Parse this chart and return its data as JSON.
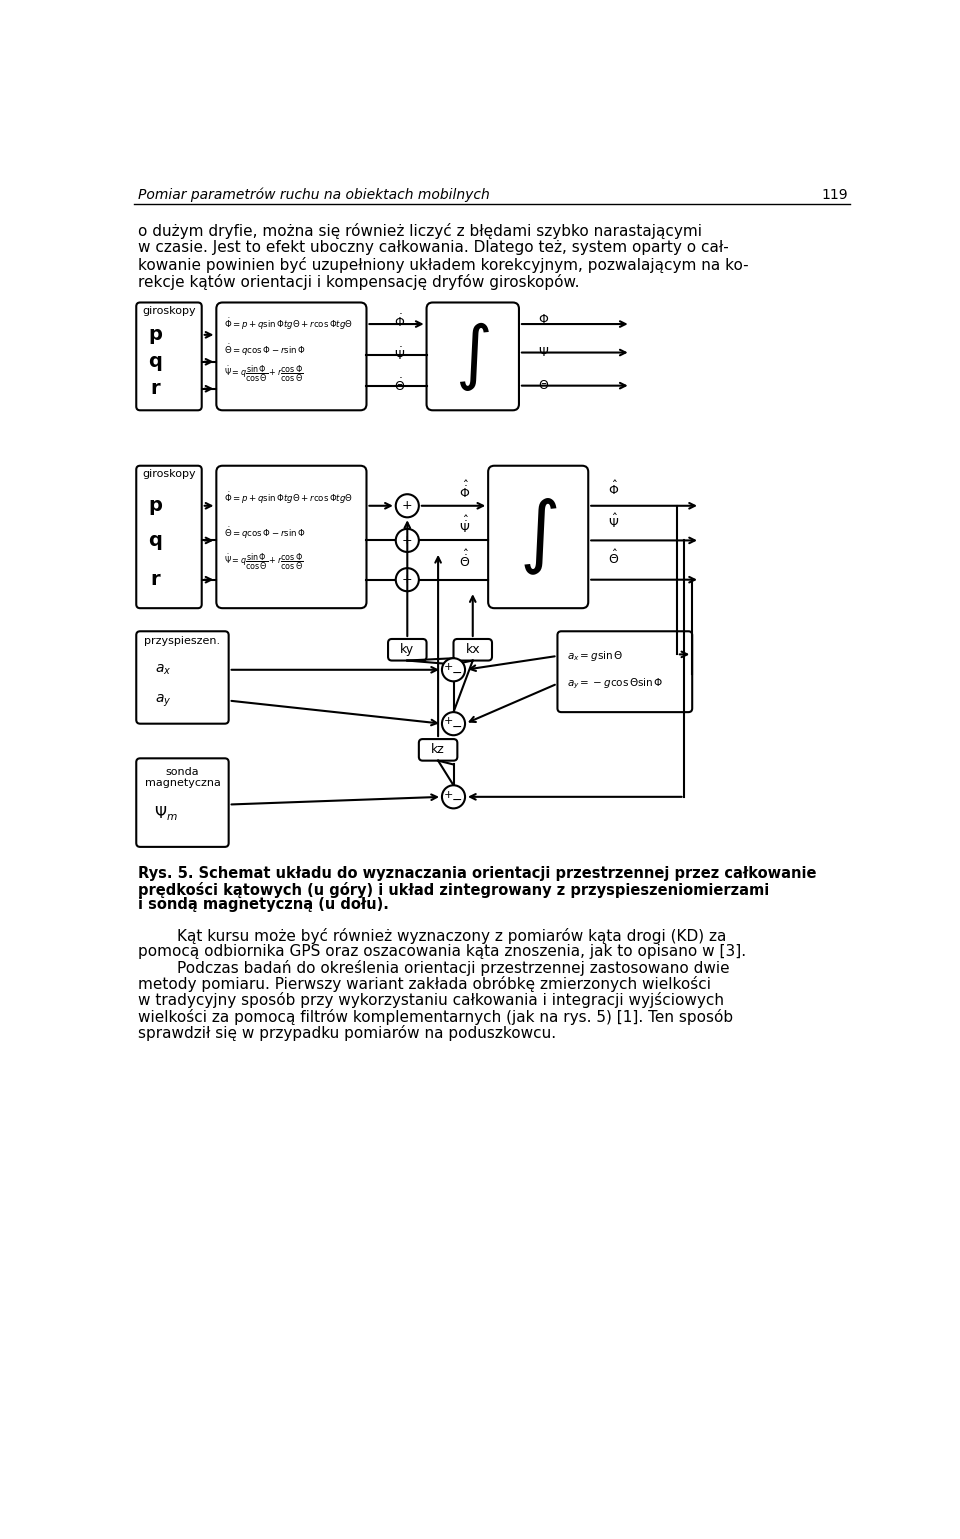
{
  "bg_color": "#ffffff",
  "lw": 1.5,
  "header_text": "Pomiar parametrów ruchu na obiektach mobilnych",
  "page_num": "119",
  "para_lines": [
    "o dużym dryfie, można się również liczyć z błędami szybko narastającymi",
    "w czasie. Jest to efekt uboczny całkowania. Dlatego też, system oparty o cał-",
    "kowanie powinien być uzupełniony układem korekcyjnym, pozwalającym na ko-",
    "rekcje kątów orientacji i kompensację dryfów giroskopów."
  ],
  "caption_lines": [
    "Rys. 5. Schemat układu do wyznaczania orientacji przestrzennej przez całkowanie",
    "prędkości kątowych (u góry) i układ zintegrowany z przyspieszeniomierzami",
    "i sondą magnetyczną (u dołu)."
  ],
  "bottom_para_lines": [
    "        Kąt kursu może być również wyznaczony z pomiarów kąta drogi (KD) za",
    "pomocą odbiornika GPS oraz oszacowania kąta znoszenia, jak to opisano w [3].",
    "        Podczas badań do określenia orientacji przestrzennej zastosowano dwie",
    "metody pomiaru. Pierwszy wariant zakłada obróbkę zmierzonych wielkości",
    "w tradycyjny sposób przy wykorzystaniu całkowania i integracji wyjściowych",
    "wielkości za pomocą filtrów komplementarnych (jak na rys. 5) [1]. Ten sposób",
    "sprawdził się w przypadku pomiarów na poduszkowcu."
  ]
}
